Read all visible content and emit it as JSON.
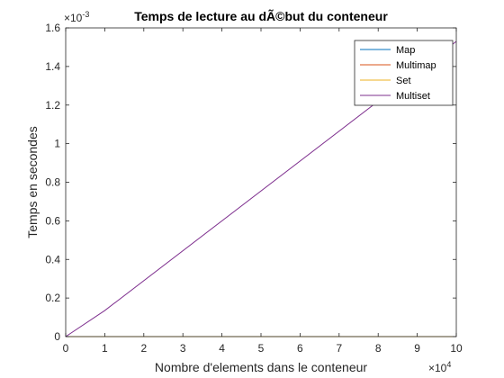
{
  "chart_data": {
    "type": "line",
    "title": "Temps de lecture au dÃ©but du conteneur",
    "xlabel": "Nombre d'elements dans le conteneur",
    "ylabel": "Temps en secondes",
    "x_exponent_label": "×10",
    "x_exponent_power": "4",
    "y_exponent_label": "×10",
    "y_exponent_power": "-3",
    "x_scale": 10000,
    "y_scale": 0.001,
    "xlim": [
      0,
      100000
    ],
    "ylim": [
      0,
      0.0016
    ],
    "x_tick_values": [
      0,
      10000,
      20000,
      30000,
      40000,
      50000,
      60000,
      70000,
      80000,
      90000,
      100000
    ],
    "x_tick_labels": [
      "0",
      "1",
      "2",
      "3",
      "4",
      "5",
      "6",
      "7",
      "8",
      "9",
      "10"
    ],
    "y_tick_values": [
      0,
      0.0002,
      0.0004,
      0.0006,
      0.0008,
      0.001,
      0.0012,
      0.0014,
      0.0016
    ],
    "y_tick_labels": [
      "0",
      "0.2",
      "0.4",
      "0.6",
      "0.8",
      "1",
      "1.2",
      "1.4",
      "1.6"
    ],
    "grid": false,
    "legend_position": "top-right",
    "series": [
      {
        "name": "Map",
        "color": "#0072BD",
        "x": [
          0,
          100000
        ],
        "y": [
          0,
          0
        ]
      },
      {
        "name": "Multimap",
        "color": "#D95319",
        "x": [
          0,
          100000
        ],
        "y": [
          0,
          0
        ]
      },
      {
        "name": "Set",
        "color": "#EDB120",
        "x": [
          0,
          100000
        ],
        "y": [
          0,
          0
        ]
      },
      {
        "name": "Multiset",
        "color": "#7E2F8E",
        "x": [
          0,
          10000,
          100000
        ],
        "y": [
          0,
          0.000135,
          0.00153
        ]
      }
    ]
  }
}
